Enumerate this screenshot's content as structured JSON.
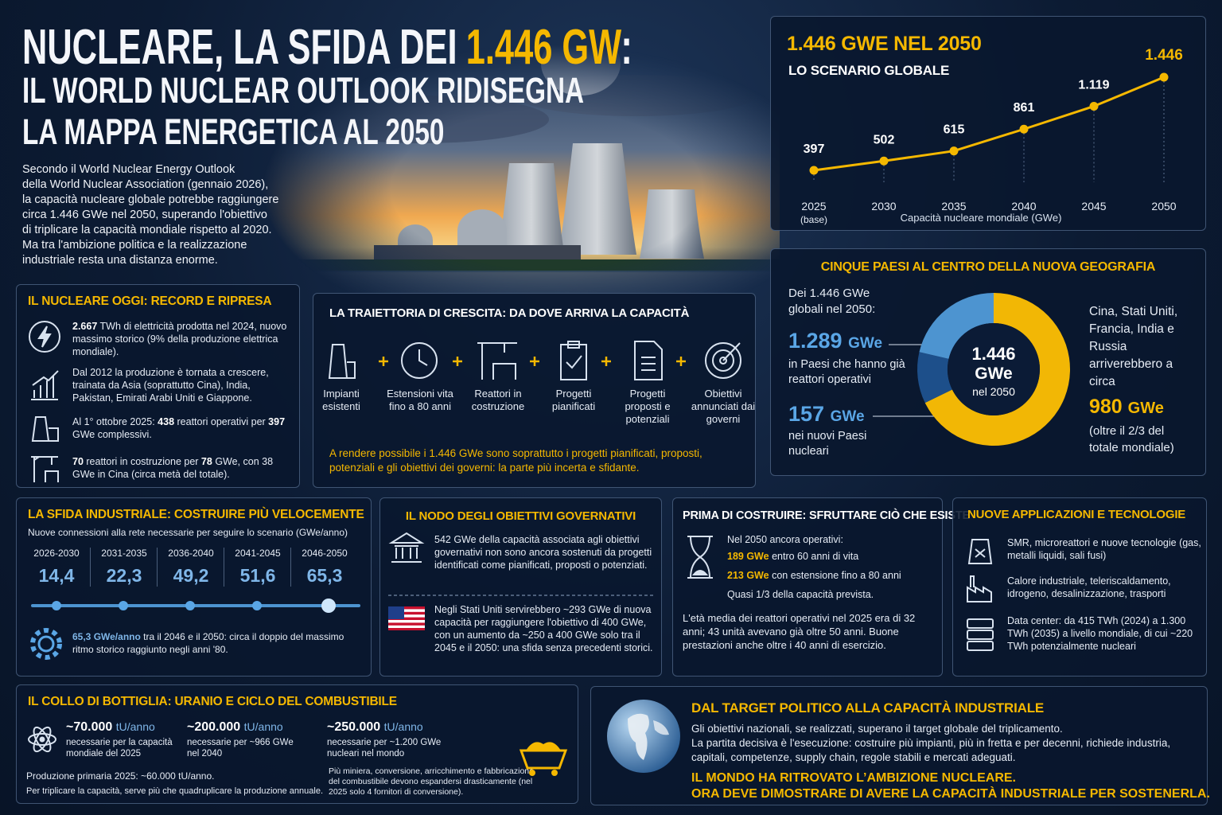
{
  "header": {
    "title_line1": "NUCLEARE, LA SFIDA DEI",
    "title_highlight": "1.446 GW",
    "title_colon": ":",
    "title_line2": "IL WORLD NUCLEAR OUTLOOK RIDISEGNA",
    "title_line3": "LA MAPPA ENERGETICA AL 2050",
    "intro": [
      "Secondo il World Nuclear Energy Outlook",
      "della World Nuclear Association (gennaio 2026),",
      "la capacità nucleare globale potrebbe raggiungere",
      "circa 1.446 GWe nel 2050, superando l'obiettivo",
      "di triplicare la capacità mondiale rispetto al 2020.",
      "Ma tra l'ambizione politica e la realizzazione",
      "industriale resta una distanza enorme."
    ]
  },
  "nucleare_oggi": {
    "title": "IL NUCLEARE OGGI: RECORD E RIPRESA",
    "items": [
      [
        {
          "hl": "2.667"
        },
        "TWh di elettricità prodotta nel 2024, nuovo massimo storico (9% della produzione elettrica mondiale)."
      ],
      [
        "Dal 2012 la produzione è tornata a crescere, trainata da Asia (soprattutto Cina), India, Pakistan, Emirati Arabi Uniti e Giappone."
      ],
      [
        "Al 1° ottobre 2025:",
        {
          "hl": "438"
        },
        "reattori operativi per",
        {
          "hl": "397"
        },
        "GWe complessivi."
      ],
      [
        {
          "hl": "70"
        },
        "reattori in costruzione per",
        {
          "hl": "78"
        },
        "GWe, con 38 GWe in Cina (circa metà del totale)."
      ]
    ]
  },
  "traiettoria": {
    "title": "LA TRAIETTORIA DI CRESCITA: DA DOVE ARRIVA LA CAPACITÀ",
    "steps": [
      "Impianti esistenti",
      "Estensioni vita fino a 80 anni",
      "Reattori in costruzione",
      "Progetti pianificati",
      "Progetti proposti e potenziali",
      "Obiettivi annunciati dai governi"
    ],
    "note": "A rendere possibile i 1.446 GWe sono soprattutto i progetti pianificati, proposti, potenziali e gli obiettivi dei governi: la parte più incerta e sfidante."
  },
  "chart_data": [
    {
      "type": "line",
      "title": "1.446 GWE NEL 2050",
      "subtitle": "LO SCENARIO GLOBALE",
      "categories": [
        "2025",
        "2030",
        "2035",
        "2040",
        "2045",
        "2050"
      ],
      "annotation": "(base)",
      "x_label": "Capacità nucleare mondiale (GWe)",
      "values": [
        397,
        502,
        615,
        861,
        1119,
        1446
      ],
      "value_labels": [
        "397",
        "502",
        "615",
        "861",
        "1.119",
        "1.446"
      ],
      "color": "#f5b800"
    },
    {
      "type": "pie",
      "title": "CINQUE PAESI AL CENTRO DELLA NUOVA GEOGRAFIA",
      "values": [
        980,
        157,
        309
      ],
      "colors": [
        "#f2b705",
        "#1d4f8a",
        "#4d94d0"
      ],
      "center_value": "1.446",
      "center_unit": "GWe",
      "center_caption": "nel 2050",
      "left_intro": "Dei 1.446 GWe globali nel 2050:",
      "existing_value": "1.289",
      "existing_unit": "GWe",
      "existing_caption": "in Paesi che hanno già reattori operativi",
      "new_value": "157",
      "new_unit": "GWe",
      "new_caption": "nei nuovi Paesi nucleari",
      "right_intro": "Cina, Stati Uniti, Francia, India e Russia arriverebbero a circa",
      "five_value": "980",
      "five_unit": "GWe",
      "five_caption": "(oltre il 2/3 del totale mondiale)"
    }
  ],
  "sfida_industriale": {
    "title": "LA SFIDA INDUSTRIALE: COSTRUIRE PIÙ VELOCEMENTE",
    "subtitle": "Nuove connessioni alla rete necessarie per seguire lo scenario (GWe/anno)",
    "periods": [
      "2026-2030",
      "2031-2035",
      "2036-2040",
      "2041-2045",
      "2046-2050"
    ],
    "values": [
      "14,4",
      "22,3",
      "49,2",
      "51,6",
      "65,3"
    ],
    "note": [
      {
        "hl": "65,3 GWe/anno"
      },
      "tra il 2046 e il 2050: circa il doppio del massimo ritmo storico raggiunto negli anni '80."
    ]
  },
  "obiettivi": {
    "title": "IL NODO DEGLI OBIETTIVI GOVERNATIVI",
    "p1": "542 GWe della capacità associata agli obiettivi governativi non sono ancora sostenuti da progetti identificati come pianificati, proposti o potenziati.",
    "p2": "Negli Stati Uniti servirebbero ~293 GWe di nuova capacità per raggiungere l'obiettivo di 400 GWe, con un aumento da ~250 a 400 GWe solo tra il 2045 e il 2050: una sfida senza precedenti storici."
  },
  "esistente": {
    "title": "PRIMA DI COSTRUIRE: SFRUTTARE CIÒ CHE ESISTE",
    "lead": "Nel 2050 ancora operativi:",
    "line1": [
      {
        "hl": "189 GWe"
      },
      "entro 60 anni di vita"
    ],
    "line2": [
      {
        "hl": "213 GWe"
      },
      "con estensione fino a 80 anni"
    ],
    "share": "Quasi 1/3 della capacità prevista.",
    "paragraph": "L'età media dei reattori operativi nel 2025 era di 32 anni; 43 unità avevano già oltre 50 anni. Buone prestazioni anche oltre i 40 anni di esercizio."
  },
  "applicazioni": {
    "title": "NUOVE APPLICAZIONI E TECNOLOGIE",
    "items": [
      "SMR, microreattori e nuove tecnologie (gas, metalli liquidi, sali fusi)",
      "Calore industriale, teleriscaldamento, idrogeno, desalinizzazione, trasporti",
      "Data center: da 415 TWh (2024) a 1.300 TWh (2035) a livello mondiale, di cui ~220 TWh potenzialmente nucleari"
    ]
  },
  "uranio": {
    "title": "IL COLLO DI BOTTIGLIA: URANIO E CICLO DEL COMBUSTIBILE",
    "columns": [
      {
        "value": "~70.000",
        "unit": "tU/anno",
        "text": "necessarie per la capacità mondiale del 2025"
      },
      {
        "value": "~200.000",
        "unit": "tU/anno",
        "text": "necessarie per ~966 GWe nel 2040"
      },
      {
        "value": "~250.000",
        "unit": "tU/anno",
        "text": "necessarie per ~1.200 GWe nucleari nel mondo"
      }
    ],
    "production": "Produzione primaria 2025: ~60.000 tU/anno.",
    "triple": "Per triplicare la capacità, serve più che quadruplicare la produzione annuale.",
    "chain": "Più miniera, conversione, arricchimento e fabbricazione del combustibile devono espandersi drasticamente (nel 2025 solo 4 fornitori di conversione)."
  },
  "conclusione": {
    "title": "DAL TARGET POLITICO ALLA CAPACITÀ INDUSTRIALE",
    "p1": "Gli obiettivi nazionali, se realizzati, superano il target globale del triplicamento.",
    "p2": "La partita decisiva è l'esecuzione: costruire più impianti, più in fretta e per decenni, richiede industria, capitali, competenze, supply chain, regole stabili e mercati adeguati.",
    "closing": [
      "IL MONDO HA RITROVATO L’AMBIZIONE NUCLEARE.",
      "ORA DEVE DIMOSTRARE DI AVERE LA CAPACITÀ INDUSTRIALE PER SOSTENERLA."
    ]
  }
}
